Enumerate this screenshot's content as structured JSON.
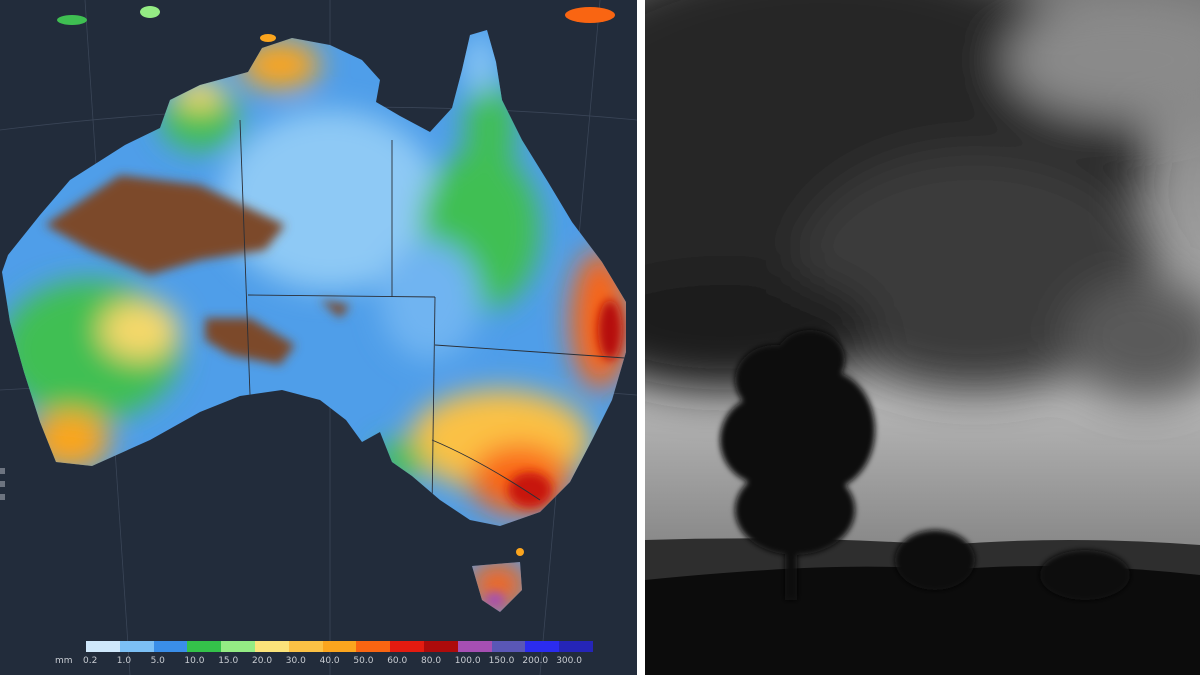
{
  "map": {
    "legend": {
      "unit": "mm",
      "labels": [
        "0.2",
        "1.0",
        "5.0",
        "10.0",
        "15.0",
        "20.0",
        "30.0",
        "40.0",
        "50.0",
        "60.0",
        "80.0",
        "100.0",
        "150.0",
        "200.0",
        "300.0"
      ],
      "colors": [
        "#cfe8fb",
        "#7cc0f5",
        "#3a8ee8",
        "#34c24a",
        "#94ec84",
        "#fbe37a",
        "#fbc145",
        "#fba51e",
        "#f96512",
        "#e41b10",
        "#ad0b0b",
        "#a64fb3",
        "#5a57b6",
        "#2b2cef",
        "#2525b8"
      ]
    },
    "background_color": "#222c3b"
  },
  "photo": {
    "description_colors": {
      "sky": "#9a9a9a",
      "cloud": "#2a2a2a",
      "ground": "#0a0a0a"
    }
  }
}
